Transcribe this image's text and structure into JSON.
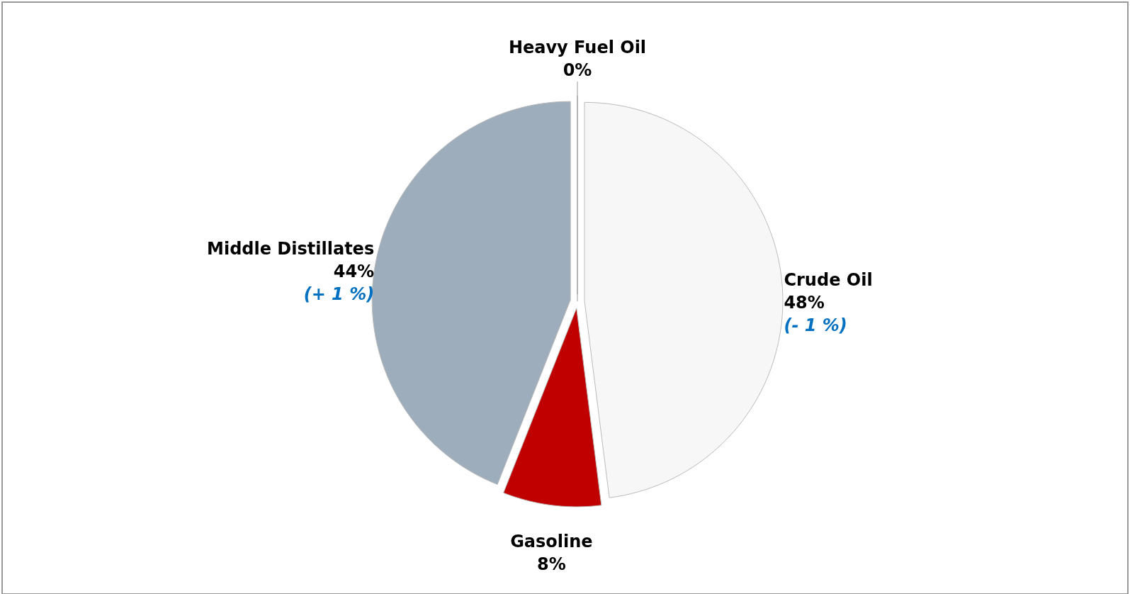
{
  "chart_data": {
    "type": "pie",
    "categories": [
      "Heavy Fuel Oil",
      "Crude Oil",
      "Gasoline",
      "Middle Distillates"
    ],
    "values": [
      0,
      48,
      8,
      44
    ],
    "colors": [
      "#1f3864",
      "#f7f7f7",
      "#c00000",
      "#9eadbb"
    ],
    "value_labels": [
      "0%",
      "48%",
      "8%",
      "44%"
    ],
    "annotations": [
      {
        "text": "(+ 1 %)",
        "x": "Middle Distillates"
      },
      {
        "text": "(- 1 %)",
        "x": "Crude Oil"
      }
    ]
  }
}
